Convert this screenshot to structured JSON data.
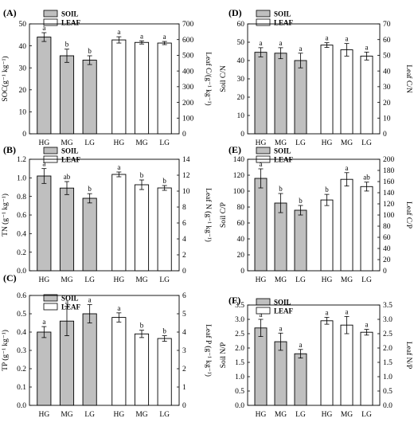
{
  "colors": {
    "soil": "#bfbfbf",
    "leaf": "#ffffff",
    "stroke": "#000000"
  },
  "chart_data": [
    {
      "id": "A",
      "type": "bar",
      "panel_label": "(A)",
      "legend": [
        "SOIL",
        "LEAF"
      ],
      "ylabel_left": "SOC(g⁻¹ kg⁻¹)",
      "ylabel_right": "Leaf C/(g⁻¹ kg⁻¹)",
      "ylim_left": [
        0,
        50
      ],
      "ylim_right": [
        0,
        700
      ],
      "ticks_left": [
        0,
        10,
        20,
        30,
        40,
        50
      ],
      "ticks_right": [
        0,
        100,
        200,
        300,
        400,
        500,
        600,
        700
      ],
      "categories": [
        "HG",
        "MG",
        "LG"
      ],
      "series": [
        {
          "name": "SOIL",
          "axis": "left",
          "values": [
            44,
            35.5,
            33.5
          ],
          "errors": [
            2,
            3,
            2
          ],
          "labels": [
            "a",
            "b",
            "b"
          ]
        },
        {
          "name": "LEAF",
          "axis": "right",
          "values": [
            598,
            582,
            578
          ],
          "errors": [
            20,
            10,
            10
          ],
          "labels": [
            "a",
            "a",
            "a"
          ]
        }
      ]
    },
    {
      "id": "D",
      "type": "bar",
      "panel_label": "(D)",
      "legend": [
        "SOIL",
        "LEAF"
      ],
      "ylabel_left": "Soil C/N",
      "ylabel_right": "Leaf C/N",
      "ylim_left": [
        0,
        60
      ],
      "ylim_right": [
        0,
        70
      ],
      "ticks_left": [
        0,
        10,
        20,
        30,
        40,
        50,
        60
      ],
      "ticks_right": [
        0,
        10,
        20,
        30,
        40,
        50,
        60,
        70
      ],
      "categories": [
        "HG",
        "MG",
        "LG"
      ],
      "series": [
        {
          "name": "SOIL",
          "axis": "left",
          "values": [
            44.5,
            44,
            40
          ],
          "errors": [
            2.5,
            3,
            4
          ],
          "labels": [
            "a",
            "a",
            "a"
          ]
        },
        {
          "name": "LEAF",
          "axis": "right",
          "values": [
            56.5,
            53.5,
            49.5
          ],
          "errors": [
            1.5,
            4,
            2.5
          ],
          "labels": [
            "a",
            "a",
            "a"
          ]
        }
      ]
    },
    {
      "id": "B",
      "type": "bar",
      "panel_label": "(B)",
      "legend": [
        "SOIL",
        "LEAF"
      ],
      "ylabel_left": "TN (g⁻¹ kg⁻¹)",
      "ylabel_right": "Leaf N (g⁻¹ kg⁻¹)",
      "ylim_left": [
        0,
        1.2
      ],
      "ylim_right": [
        0,
        14
      ],
      "ticks_left": [
        0,
        0.2,
        0.4,
        0.6,
        0.8,
        1.0,
        1.2
      ],
      "ticks_right": [
        0,
        2,
        4,
        6,
        8,
        10,
        12,
        14
      ],
      "tick_decimals_left": 1,
      "categories": [
        "HG",
        "MG",
        "LG"
      ],
      "series": [
        {
          "name": "SOIL",
          "axis": "left",
          "values": [
            1.02,
            0.89,
            0.78
          ],
          "errors": [
            0.08,
            0.07,
            0.05
          ],
          "labels": [
            "a",
            "ab",
            "b"
          ]
        },
        {
          "name": "LEAF",
          "axis": "right",
          "values": [
            12.1,
            10.8,
            10.4
          ],
          "errors": [
            0.3,
            0.6,
            0.3
          ],
          "labels": [
            "a",
            "b",
            "b"
          ]
        }
      ]
    },
    {
      "id": "E",
      "type": "bar",
      "panel_label": "(E)",
      "legend": [
        "SOIL",
        "LEAF"
      ],
      "ylabel_left": "Soil C/P",
      "ylabel_right": "Leaf C/P",
      "ylim_left": [
        0,
        140
      ],
      "ylim_right": [
        0,
        200
      ],
      "ticks_left": [
        0,
        20,
        40,
        60,
        80,
        100,
        120,
        140
      ],
      "ticks_right": [
        0,
        20,
        40,
        60,
        80,
        100,
        120,
        140,
        160,
        180,
        200
      ],
      "categories": [
        "HG",
        "MG",
        "LG"
      ],
      "series": [
        {
          "name": "SOIL",
          "axis": "left",
          "values": [
            116,
            85,
            76
          ],
          "errors": [
            12,
            12,
            6
          ],
          "labels": [
            "a",
            "b",
            "b"
          ]
        },
        {
          "name": "LEAF",
          "axis": "right",
          "values": [
            127,
            164,
            151
          ],
          "errors": [
            10,
            12,
            8
          ],
          "labels": [
            "b",
            "a",
            "ab"
          ]
        }
      ]
    },
    {
      "id": "C",
      "type": "bar",
      "panel_label": "(C)",
      "legend": [
        "SOIL",
        "LEAF"
      ],
      "ylabel_left": "TP (g⁻¹ kg⁻¹)",
      "ylabel_right": "Leaf P (g⁻¹ kg⁻¹)",
      "ylim_left": [
        0,
        0.6
      ],
      "ylim_right": [
        0,
        6
      ],
      "ticks_left": [
        0,
        0.1,
        0.2,
        0.3,
        0.4,
        0.5,
        0.6
      ],
      "ticks_right": [
        0,
        1,
        2,
        3,
        4,
        5,
        6
      ],
      "tick_decimals_left": 1,
      "categories": [
        "HG",
        "MG",
        "LG"
      ],
      "series": [
        {
          "name": "SOIL",
          "axis": "left",
          "values": [
            0.4,
            0.46,
            0.5
          ],
          "errors": [
            0.03,
            0.08,
            0.05
          ],
          "labels": [
            "a",
            "a",
            "a"
          ]
        },
        {
          "name": "LEAF",
          "axis": "right",
          "values": [
            4.8,
            3.9,
            3.65
          ],
          "errors": [
            0.25,
            0.2,
            0.15
          ],
          "labels": [
            "a",
            "b",
            "b"
          ]
        }
      ]
    },
    {
      "id": "F",
      "type": "bar",
      "panel_label": "(F)",
      "legend": [
        "SOIL",
        "LEAF"
      ],
      "ylabel_left": "Soil N/P",
      "ylabel_right": "Leaf N/P",
      "ylim_left": [
        0,
        3.5
      ],
      "ylim_right": [
        0,
        3.5
      ],
      "ticks_left": [
        0,
        0.5,
        1.0,
        1.5,
        2.0,
        2.5,
        3.0,
        3.5
      ],
      "ticks_right": [
        0,
        0.5,
        1.0,
        1.5,
        2.0,
        2.5,
        3.0,
        3.5
      ],
      "tick_decimals_left": 1,
      "tick_decimals_right": 1,
      "categories": [
        "HG",
        "MG",
        "LG"
      ],
      "series": [
        {
          "name": "SOIL",
          "axis": "left",
          "values": [
            2.7,
            2.22,
            1.8
          ],
          "errors": [
            0.3,
            0.3,
            0.15
          ],
          "labels": [
            "a",
            "a",
            "a"
          ]
        },
        {
          "name": "LEAF",
          "axis": "right",
          "values": [
            2.95,
            2.8,
            2.55
          ],
          "errors": [
            0.12,
            0.3,
            0.1
          ],
          "labels": [
            "a",
            "a",
            "a"
          ]
        }
      ]
    }
  ]
}
